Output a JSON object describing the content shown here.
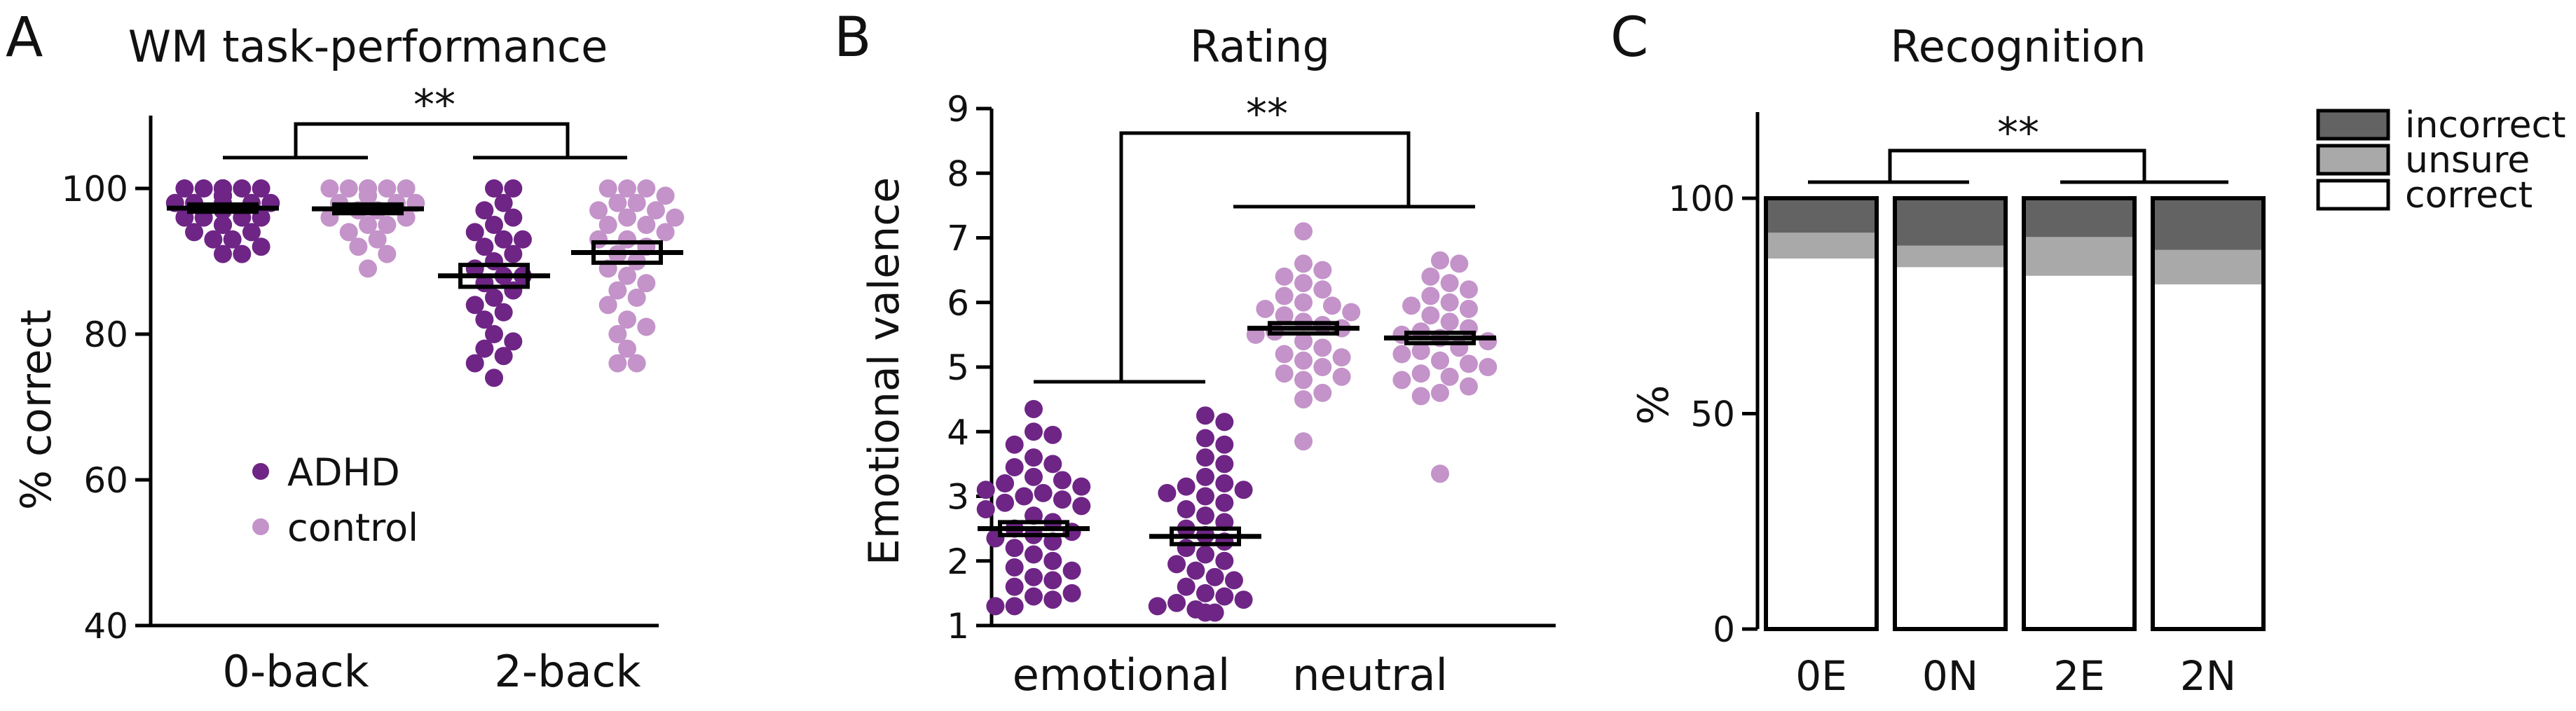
{
  "colors": {
    "adhd": "#6e2585",
    "control": "#c393c9",
    "axis": "#000000",
    "incorrect": "#636363",
    "unsure": "#a9a9a9",
    "correct": "#ffffff"
  },
  "chart_data": [
    {
      "type": "scatter",
      "panel_label": "A",
      "title": "WM task-performance",
      "xlabel": "",
      "ylabel": "% correct",
      "ylim": [
        40,
        110
      ],
      "yticks": [
        40,
        60,
        80,
        100
      ],
      "groups": [
        "0-back",
        "2-back"
      ],
      "legend": {
        "placement": "lower-left",
        "entries": [
          "ADHD",
          "control"
        ]
      },
      "significance": "**",
      "series": [
        {
          "name": "ADHD",
          "group": "0-back",
          "mean": 97.3,
          "sem": 0.5,
          "values": [
            100,
            100,
            100,
            100,
            100,
            100,
            100,
            100,
            100,
            100,
            100,
            100,
            100,
            100,
            99,
            99,
            99,
            99,
            99,
            98,
            98,
            98,
            98,
            98,
            97,
            97,
            97,
            97,
            97,
            96,
            96,
            96,
            96,
            95,
            95,
            95,
            94,
            94,
            93,
            93,
            92,
            91,
            91
          ]
        },
        {
          "name": "control",
          "group": "0-back",
          "mean": 97.2,
          "sem": 0.6,
          "values": [
            100,
            100,
            100,
            100,
            100,
            100,
            100,
            100,
            100,
            100,
            100,
            99,
            99,
            99,
            98,
            98,
            98,
            97,
            97,
            96,
            96,
            95,
            95,
            94,
            93,
            92,
            91,
            89
          ]
        },
        {
          "name": "ADHD",
          "group": "2-back",
          "mean": 88.0,
          "sem": 1.5,
          "values": [
            100,
            100,
            98,
            97,
            96,
            95,
            94,
            93,
            93,
            92,
            91,
            90,
            89,
            88,
            88,
            87,
            86,
            85,
            84,
            83,
            82,
            80,
            79,
            78,
            77,
            76,
            74
          ]
        },
        {
          "name": "control",
          "group": "2-back",
          "mean": 91.2,
          "sem": 1.4,
          "values": [
            100,
            100,
            100,
            99,
            98,
            98,
            97,
            97,
            96,
            96,
            95,
            95,
            94,
            93,
            93,
            92,
            91,
            90,
            89,
            88,
            87,
            86,
            85,
            84,
            82,
            81,
            80,
            78,
            76,
            76
          ]
        }
      ]
    },
    {
      "type": "scatter",
      "panel_label": "B",
      "title": "Rating",
      "xlabel": "",
      "ylabel": "Emotional valence",
      "ylim": [
        1,
        9
      ],
      "yticks": [
        1,
        2,
        3,
        4,
        5,
        6,
        7,
        8,
        9
      ],
      "groups": [
        "emotional",
        "neutral"
      ],
      "significance": "**",
      "series": [
        {
          "name": "ADHD",
          "group": "emotional",
          "mean": 2.5,
          "sem": 0.1,
          "values": [
            4.35,
            4.0,
            3.95,
            3.8,
            3.6,
            3.5,
            3.45,
            3.3,
            3.25,
            3.2,
            3.15,
            3.1,
            3.05,
            3.0,
            2.95,
            2.9,
            2.85,
            2.8,
            2.7,
            2.6,
            2.5,
            2.45,
            2.4,
            2.35,
            2.3,
            2.2,
            2.1,
            2.0,
            1.9,
            1.85,
            1.75,
            1.7,
            1.6,
            1.5,
            1.45,
            1.4,
            1.3,
            1.3
          ]
        },
        {
          "name": "ADHD",
          "group": "neutral-slot",
          "mean": 2.38,
          "sem": 0.12,
          "values": [
            4.25,
            4.15,
            3.9,
            3.8,
            3.6,
            3.5,
            3.3,
            3.2,
            3.15,
            3.1,
            3.05,
            3.0,
            2.9,
            2.8,
            2.7,
            2.6,
            2.5,
            2.4,
            2.3,
            2.2,
            2.1,
            2.0,
            1.95,
            1.85,
            1.75,
            1.7,
            1.6,
            1.5,
            1.45,
            1.4,
            1.35,
            1.3,
            1.25,
            1.2,
            1.2
          ]
        },
        {
          "name": "control",
          "group": "neutral",
          "mean": 5.6,
          "sem": 0.08,
          "values": [
            7.1,
            6.6,
            6.5,
            6.4,
            6.3,
            6.2,
            6.1,
            6.0,
            5.95,
            5.9,
            5.85,
            5.8,
            5.7,
            5.65,
            5.6,
            5.55,
            5.5,
            5.4,
            5.3,
            5.2,
            5.15,
            5.1,
            5.0,
            4.9,
            4.85,
            4.8,
            4.6,
            4.5,
            3.85
          ]
        },
        {
          "name": "control",
          "group": "neutral-slot",
          "mean": 5.45,
          "sem": 0.08,
          "values": [
            6.65,
            6.6,
            6.4,
            6.3,
            6.2,
            6.1,
            6.0,
            5.95,
            5.9,
            5.8,
            5.7,
            5.6,
            5.55,
            5.5,
            5.45,
            5.4,
            5.3,
            5.25,
            5.2,
            5.1,
            5.05,
            5.0,
            4.9,
            4.85,
            4.8,
            4.7,
            4.6,
            4.55,
            3.35
          ]
        }
      ]
    },
    {
      "type": "bar",
      "stacked": true,
      "panel_label": "C",
      "title": "Recognition",
      "xlabel": "",
      "ylabel": "%",
      "ylim": [
        0,
        120
      ],
      "yticks": [
        0,
        50,
        100
      ],
      "categories": [
        "0E",
        "0N",
        "2E",
        "2N"
      ],
      "legend": {
        "placement": "top-right",
        "entries": [
          "incorrect",
          "unsure",
          "correct"
        ]
      },
      "significance": "**",
      "series": [
        {
          "name": "correct",
          "values": [
            86,
            84,
            82,
            80
          ]
        },
        {
          "name": "unsure",
          "values": [
            6,
            5,
            9,
            8
          ]
        },
        {
          "name": "incorrect",
          "values": [
            8,
            11,
            9,
            12
          ]
        }
      ]
    }
  ]
}
